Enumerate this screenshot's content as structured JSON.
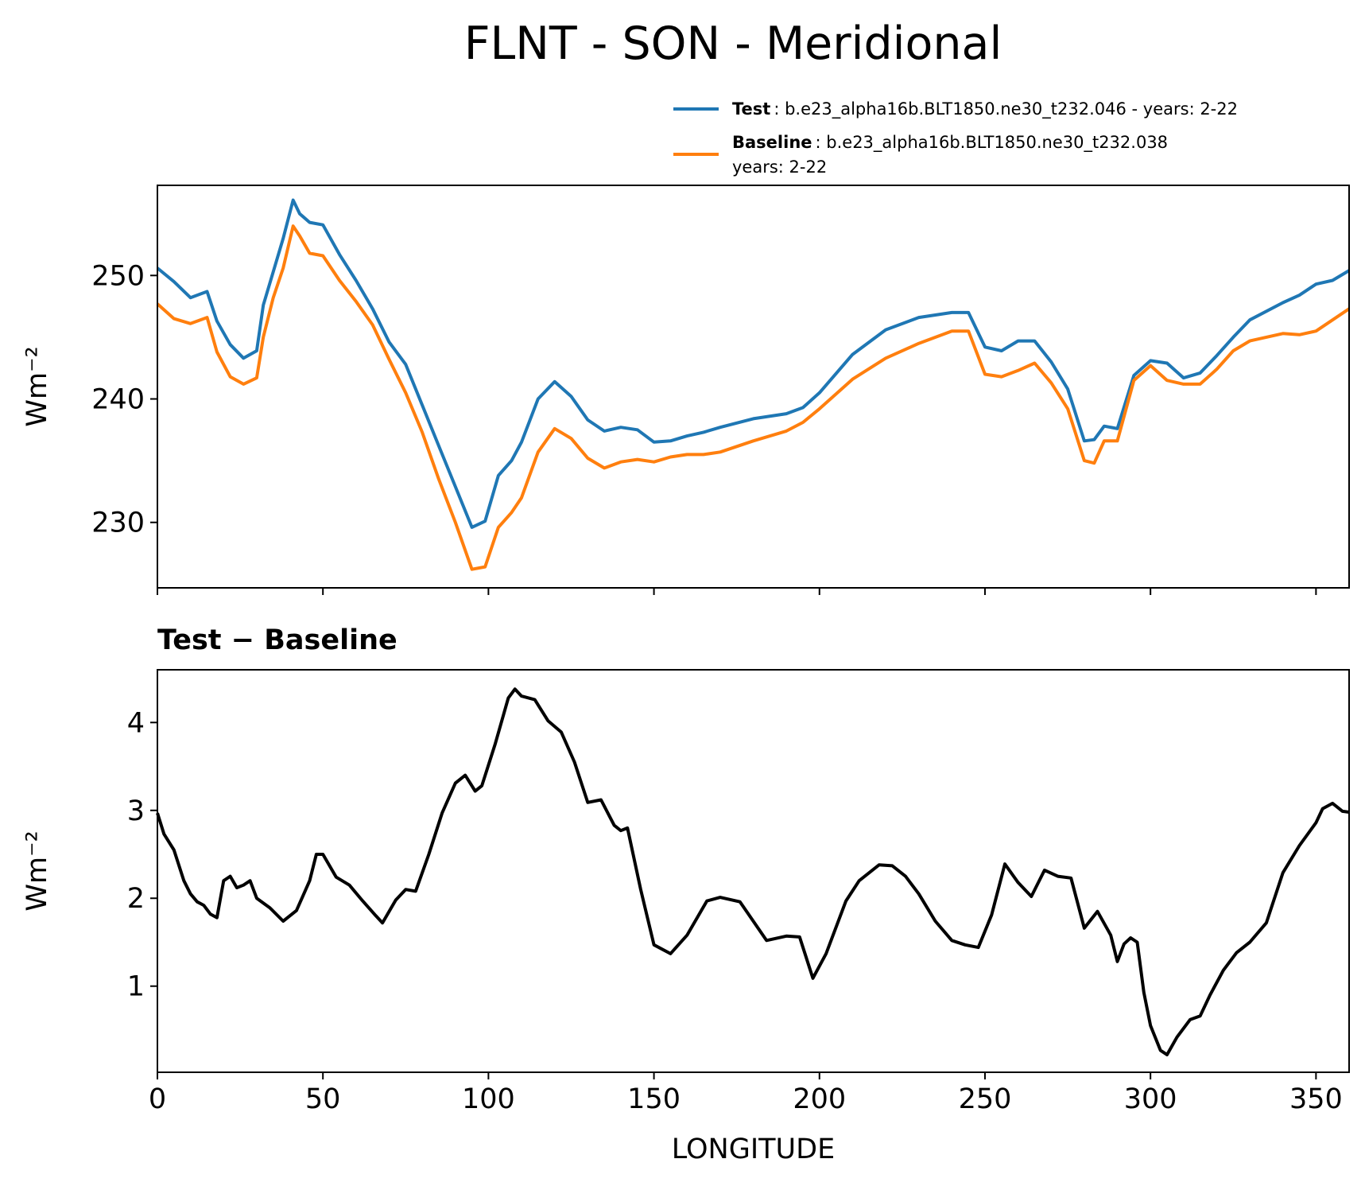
{
  "figure": {
    "title": "FLNT - SON - Meridional",
    "difference_title": "Test − Baseline"
  },
  "legend": {
    "test_label": "Test",
    "test_desc": ": b.e23_alpha16b.BLT1850.ne30_t232.046 - years: 2-22",
    "baseline_label": "Baseline",
    "baseline_desc": ": b.e23_alpha16b.BLT1850.ne30_t232.038",
    "baseline_years": "years: 2-22"
  },
  "chart_data": [
    {
      "type": "line",
      "panel": "top",
      "ylabel": "Wm⁻²",
      "xlim": [
        0,
        360
      ],
      "ylim": [
        224.7,
        257.3
      ],
      "yticks": [
        230,
        240,
        250
      ],
      "xticks": [
        0,
        50,
        100,
        150,
        200,
        250,
        300,
        350
      ],
      "show_x_tick_labels": false,
      "x": [
        0,
        5,
        10,
        15,
        18,
        22,
        26,
        30,
        32,
        35,
        38,
        41,
        43,
        46,
        50,
        55,
        60,
        65,
        70,
        75,
        80,
        85,
        90,
        95,
        99,
        103,
        107,
        110,
        115,
        120,
        125,
        130,
        135,
        140,
        145,
        150,
        155,
        160,
        165,
        170,
        180,
        190,
        195,
        200,
        210,
        220,
        230,
        240,
        245,
        250,
        255,
        260,
        265,
        270,
        275,
        280,
        283,
        286,
        290,
        295,
        300,
        305,
        310,
        315,
        320,
        325,
        330,
        340,
        345,
        350,
        355,
        360
      ],
      "series": [
        {
          "name": "Test",
          "color": "#1f77b4",
          "values": [
            250.6,
            249.5,
            248.2,
            248.7,
            246.3,
            244.4,
            243.3,
            243.9,
            247.6,
            250.3,
            253.0,
            256.1,
            255.0,
            254.3,
            254.1,
            251.7,
            249.6,
            247.3,
            244.6,
            242.8,
            239.5,
            236.2,
            232.9,
            229.6,
            230.1,
            233.8,
            235.0,
            236.5,
            240.0,
            241.4,
            240.2,
            238.3,
            237.4,
            237.7,
            237.5,
            236.5,
            236.6,
            237.0,
            237.3,
            237.7,
            238.4,
            238.8,
            239.3,
            240.5,
            243.6,
            245.6,
            246.6,
            247.0,
            247.0,
            244.2,
            243.9,
            244.7,
            244.7,
            243.0,
            240.8,
            236.6,
            236.7,
            237.8,
            237.6,
            241.9,
            243.1,
            242.9,
            241.7,
            242.1,
            243.5,
            245.0,
            246.4,
            247.8,
            248.4,
            249.3,
            249.6,
            250.4
          ]
        },
        {
          "name": "Baseline",
          "color": "#ff7f0e",
          "values": [
            247.7,
            246.5,
            246.1,
            246.6,
            243.8,
            241.8,
            241.2,
            241.7,
            245.0,
            248.2,
            250.6,
            254.0,
            253.2,
            251.8,
            251.6,
            249.6,
            247.9,
            246.0,
            243.2,
            240.5,
            237.3,
            233.5,
            230.0,
            226.2,
            226.4,
            229.6,
            230.8,
            232.0,
            235.7,
            237.6,
            236.8,
            235.2,
            234.4,
            234.9,
            235.1,
            234.9,
            235.3,
            235.5,
            235.5,
            235.7,
            236.6,
            237.4,
            238.1,
            239.2,
            241.6,
            243.3,
            244.5,
            245.5,
            245.5,
            242.0,
            241.8,
            242.3,
            242.9,
            241.3,
            239.2,
            235.0,
            234.8,
            236.6,
            236.6,
            241.5,
            242.7,
            241.5,
            241.2,
            241.2,
            242.4,
            243.9,
            244.7,
            245.3,
            245.2,
            245.5,
            246.4,
            247.3
          ]
        }
      ]
    },
    {
      "type": "line",
      "panel": "bottom",
      "title": "Test − Baseline",
      "xlabel": "LONGITUDE",
      "ylabel": "Wm⁻²",
      "xlim": [
        0,
        360
      ],
      "ylim": [
        0.02,
        4.6
      ],
      "yticks": [
        1,
        2,
        3,
        4
      ],
      "xticks": [
        0,
        50,
        100,
        150,
        200,
        250,
        300,
        350
      ],
      "x": [
        0,
        2,
        5,
        8,
        10,
        12,
        14,
        16,
        18,
        20,
        22,
        24,
        26,
        28,
        30,
        34,
        38,
        42,
        46,
        48,
        50,
        54,
        58,
        62,
        66,
        68,
        72,
        75,
        78,
        82,
        86,
        90,
        93,
        96,
        98,
        102,
        106,
        108,
        110,
        114,
        118,
        122,
        126,
        130,
        134,
        138,
        140,
        142,
        146,
        150,
        155,
        160,
        166,
        170,
        176,
        184,
        190,
        194,
        198,
        202,
        208,
        212,
        218,
        222,
        226,
        230,
        235,
        240,
        244,
        248,
        252,
        256,
        260,
        264,
        268,
        272,
        276,
        280,
        284,
        288,
        290,
        292,
        294,
        296,
        298,
        300,
        303,
        305,
        308,
        312,
        315,
        318,
        322,
        326,
        330,
        335,
        340,
        345,
        350,
        352,
        355,
        358,
        360
      ],
      "series": [
        {
          "name": "Test − Baseline",
          "color": "#000000",
          "values": [
            2.97,
            2.73,
            2.55,
            2.2,
            2.05,
            1.96,
            1.92,
            1.82,
            1.78,
            2.2,
            2.25,
            2.12,
            2.15,
            2.2,
            2.0,
            1.89,
            1.74,
            1.86,
            2.2,
            2.5,
            2.5,
            2.24,
            2.15,
            1.97,
            1.8,
            1.72,
            1.98,
            2.1,
            2.08,
            2.5,
            2.97,
            3.31,
            3.4,
            3.22,
            3.28,
            3.75,
            4.28,
            4.38,
            4.3,
            4.26,
            4.02,
            3.89,
            3.55,
            3.09,
            3.12,
            2.83,
            2.77,
            2.8,
            2.1,
            1.47,
            1.37,
            1.58,
            1.97,
            2.01,
            1.96,
            1.52,
            1.57,
            1.56,
            1.09,
            1.37,
            1.97,
            2.2,
            2.38,
            2.37,
            2.25,
            2.05,
            1.74,
            1.52,
            1.47,
            1.44,
            1.81,
            2.39,
            2.18,
            2.02,
            2.32,
            2.25,
            2.23,
            1.66,
            1.85,
            1.58,
            1.28,
            1.48,
            1.55,
            1.5,
            0.93,
            0.55,
            0.27,
            0.22,
            0.42,
            0.62,
            0.66,
            0.9,
            1.18,
            1.38,
            1.5,
            1.72,
            2.29,
            2.6,
            2.86,
            3.02,
            3.08,
            2.99,
            2.98
          ]
        }
      ]
    }
  ]
}
